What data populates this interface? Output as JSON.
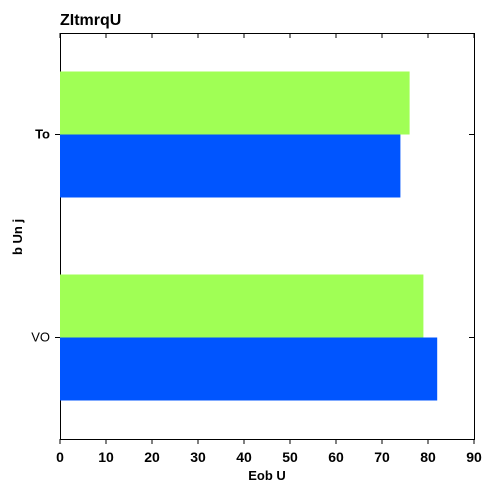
{
  "chart_data": {
    "type": "bar",
    "orientation": "horizontal",
    "title": "ZItmrqU",
    "xlabel": "Eob U",
    "ylabel": "b Un j",
    "categories": [
      "VO",
      "To"
    ],
    "category_label_bold": [
      false,
      true
    ],
    "series": [
      {
        "values": [
          82,
          74
        ],
        "color": "#0055ff"
      },
      {
        "values": [
          79,
          76
        ],
        "color": "#a0ff55"
      }
    ],
    "xlim": [
      0,
      90
    ],
    "xticks": [
      0,
      10,
      20,
      30,
      40,
      50,
      60,
      70,
      80,
      90
    ],
    "grid": false,
    "legend": "none"
  }
}
